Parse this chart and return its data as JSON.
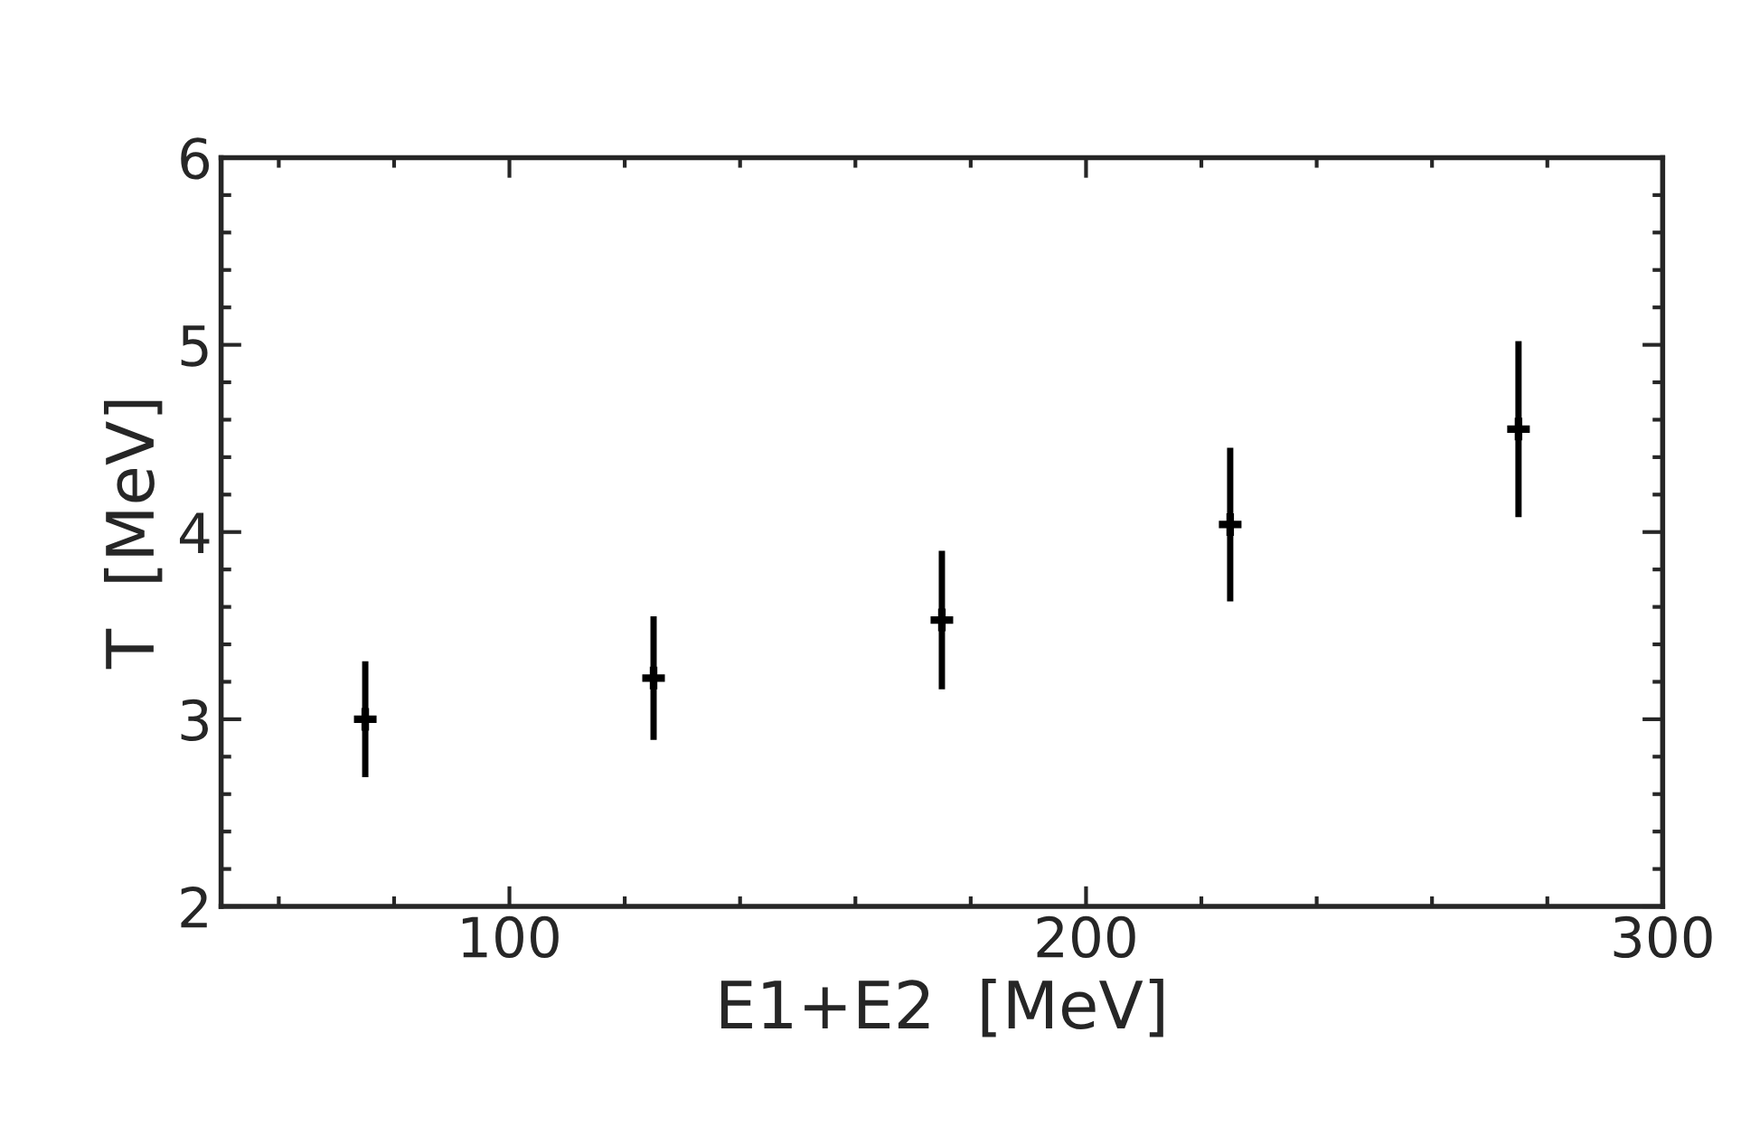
{
  "chart_data": {
    "type": "scatter",
    "xlabel": "E1+E2  [MeV]",
    "ylabel": "T  [MeV]",
    "x": [
      75,
      125,
      175,
      225,
      275
    ],
    "values": [
      3.0,
      3.22,
      3.53,
      4.04,
      4.55
    ],
    "errors": [
      0.31,
      0.33,
      0.37,
      0.41,
      0.47
    ],
    "color": "#000000",
    "marker": "cross",
    "xlim": [
      50,
      300
    ],
    "xticks": [
      100,
      200,
      300
    ],
    "ylim": [
      2,
      6
    ],
    "yticks": [
      2,
      3,
      4,
      5,
      6
    ],
    "grid": false,
    "legend": false
  }
}
